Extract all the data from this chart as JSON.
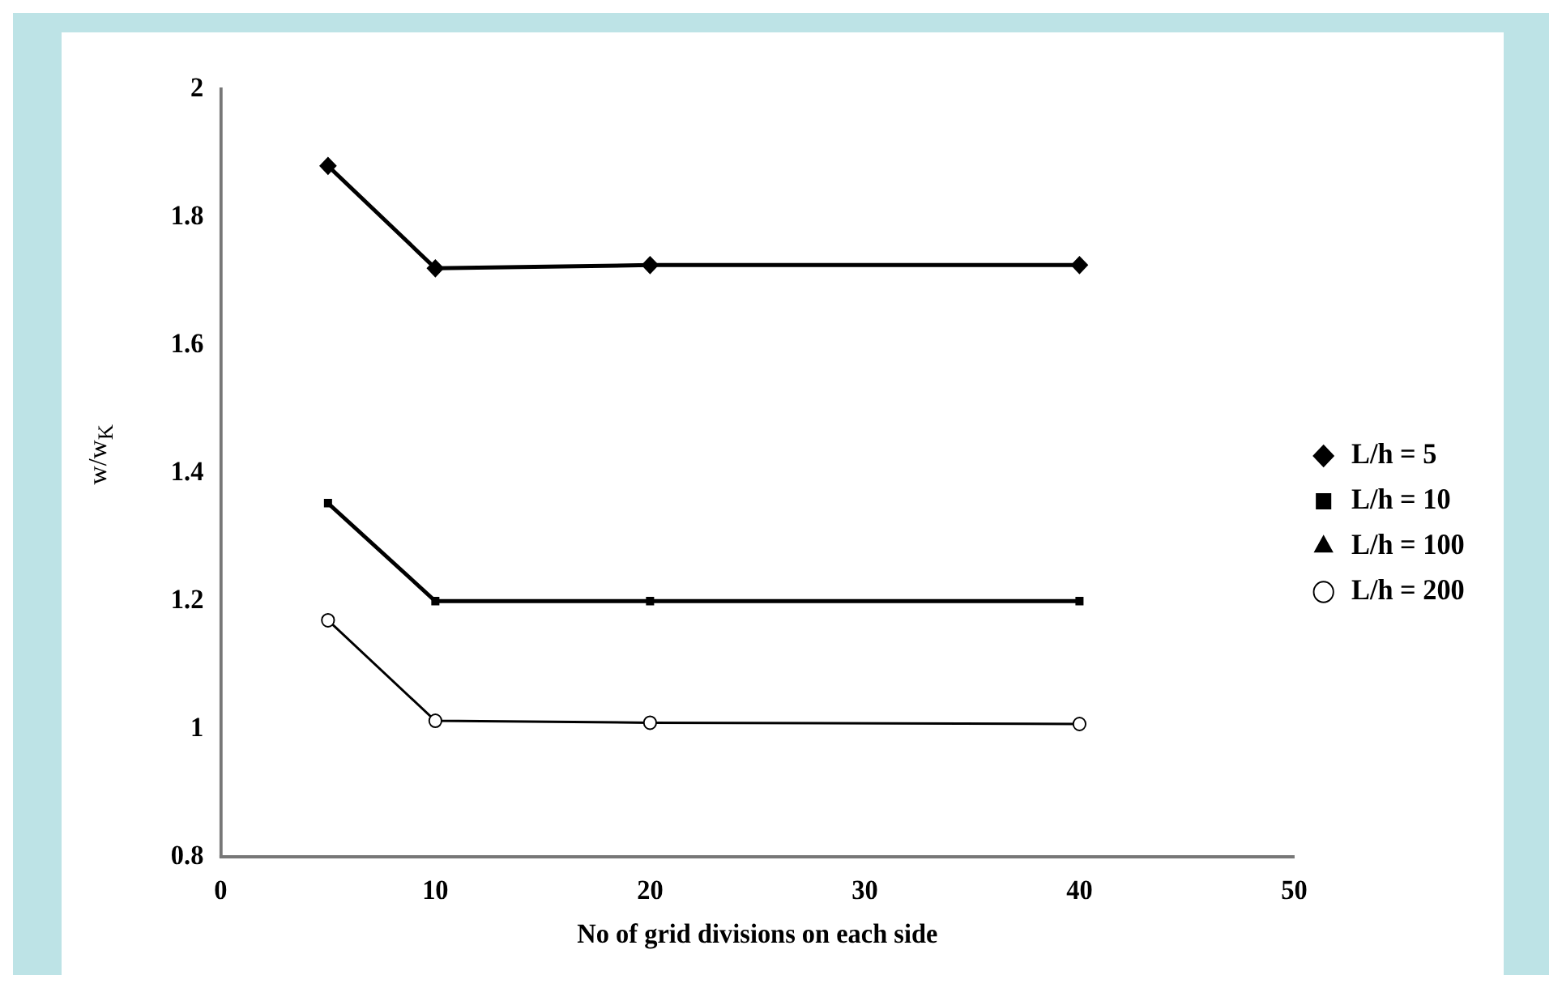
{
  "chart_data": {
    "type": "line",
    "xlabel": "No of grid divisions on each side",
    "ylabel": "w/w$_{K}$",
    "xlim": [
      0,
      50
    ],
    "xticks": [
      0,
      10,
      20,
      30,
      40,
      50
    ],
    "ylim": [
      0.8,
      2
    ],
    "yticks": [
      0.8,
      1,
      1.2,
      1.4,
      1.6,
      1.8,
      2
    ],
    "grid": false,
    "legend": "right",
    "line_style": "solid",
    "x": [
      5,
      10,
      20,
      40
    ],
    "series": [
      {
        "name": "L/h = 5",
        "color": "#000000",
        "marker": "diamond",
        "values": [
          1.88,
          1.72,
          1.725,
          1.725
        ]
      },
      {
        "name": "L/h = 10",
        "color": "#000000",
        "marker": "square",
        "values": [
          1.353,
          1.2,
          1.2,
          1.2
        ]
      },
      {
        "name": "L/h = 100",
        "color": "#000000",
        "marker": "triangle",
        "values": [
          null,
          null,
          null,
          null
        ]
      },
      {
        "name": "L/h = 200",
        "color": "#000000",
        "marker": "circle",
        "values": [
          1.17,
          1.013,
          1.01,
          1.008
        ]
      }
    ]
  }
}
